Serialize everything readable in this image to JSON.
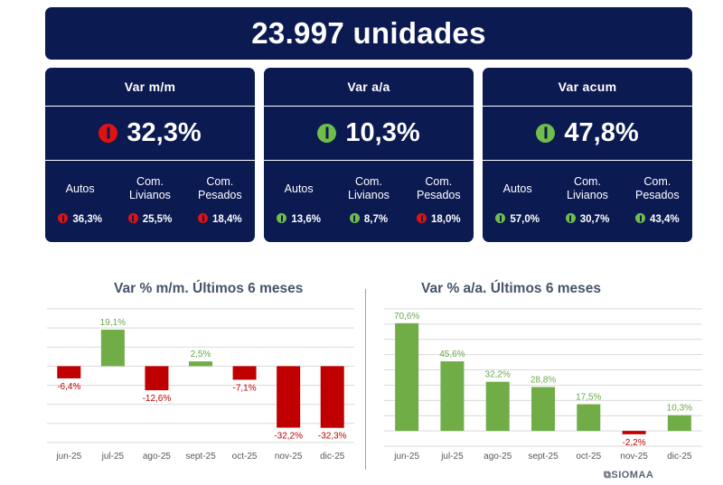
{
  "headline": "23.997 unidades",
  "cards": [
    {
      "title": "Var m/m",
      "main_value": "32,3%",
      "main_direction": "down",
      "sub_labels": [
        "Autos",
        "Com.\nLivianos",
        "Com.\nPesados"
      ],
      "sub_values": [
        {
          "text": "36,3%",
          "direction": "down"
        },
        {
          "text": "25,5%",
          "direction": "down"
        },
        {
          "text": "18,4%",
          "direction": "down"
        }
      ]
    },
    {
      "title": "Var a/a",
      "main_value": "10,3%",
      "main_direction": "up",
      "sub_labels": [
        "Autos",
        "Com.\nLivianos",
        "Com.\nPesados"
      ],
      "sub_values": [
        {
          "text": "13,6%",
          "direction": "up"
        },
        {
          "text": "8,7%",
          "direction": "up"
        },
        {
          "text": "18,0%",
          "direction": "down"
        }
      ]
    },
    {
      "title": "Var acum",
      "main_value": "47,8%",
      "main_direction": "up",
      "sub_labels": [
        "Autos",
        "Com.\nLivianos",
        "Com.\nPesados"
      ],
      "sub_values": [
        {
          "text": "57,0%",
          "direction": "up"
        },
        {
          "text": "30,7%",
          "direction": "up"
        },
        {
          "text": "43,4%",
          "direction": "up"
        }
      ]
    }
  ],
  "colors": {
    "navy": "#0c1a52",
    "positive": "#70ad47",
    "negative": "#c00000",
    "label_positive": "#6aa84f",
    "label_negative": "#c00000",
    "axis_text": "#595959",
    "grid": "#d9d9d9"
  },
  "chart_data": [
    {
      "type": "bar",
      "title": "Var % m/m. Últimos 6 meses",
      "categories": [
        "jun-25",
        "jul-25",
        "ago-25",
        "sept-25",
        "oct-25",
        "nov-25",
        "dic-25"
      ],
      "values": [
        -6.4,
        19.1,
        -12.6,
        2.5,
        -7.1,
        -32.2,
        -32.3
      ],
      "value_labels": [
        "-6,4%",
        "19,1%",
        "-12,6%",
        "2,5%",
        "-7,1%",
        "-32,2%",
        "-32,3%"
      ],
      "ylim": [
        -40,
        30
      ],
      "grid": true,
      "legend": false
    },
    {
      "type": "bar",
      "title": "Var % a/a. Últimos 6 meses",
      "categories": [
        "jun-25",
        "jul-25",
        "ago-25",
        "sept-25",
        "oct-25",
        "nov-25",
        "dic-25"
      ],
      "values": [
        70.6,
        45.6,
        32.2,
        28.8,
        17.5,
        -2.2,
        10.3
      ],
      "value_labels": [
        "70,6%",
        "45,6%",
        "32,2%",
        "28,8%",
        "17,5%",
        "-2,2%",
        "10,3%"
      ],
      "ylim": [
        -10,
        80
      ],
      "grid": true,
      "legend": false
    }
  ],
  "brand": "SIOMAA"
}
